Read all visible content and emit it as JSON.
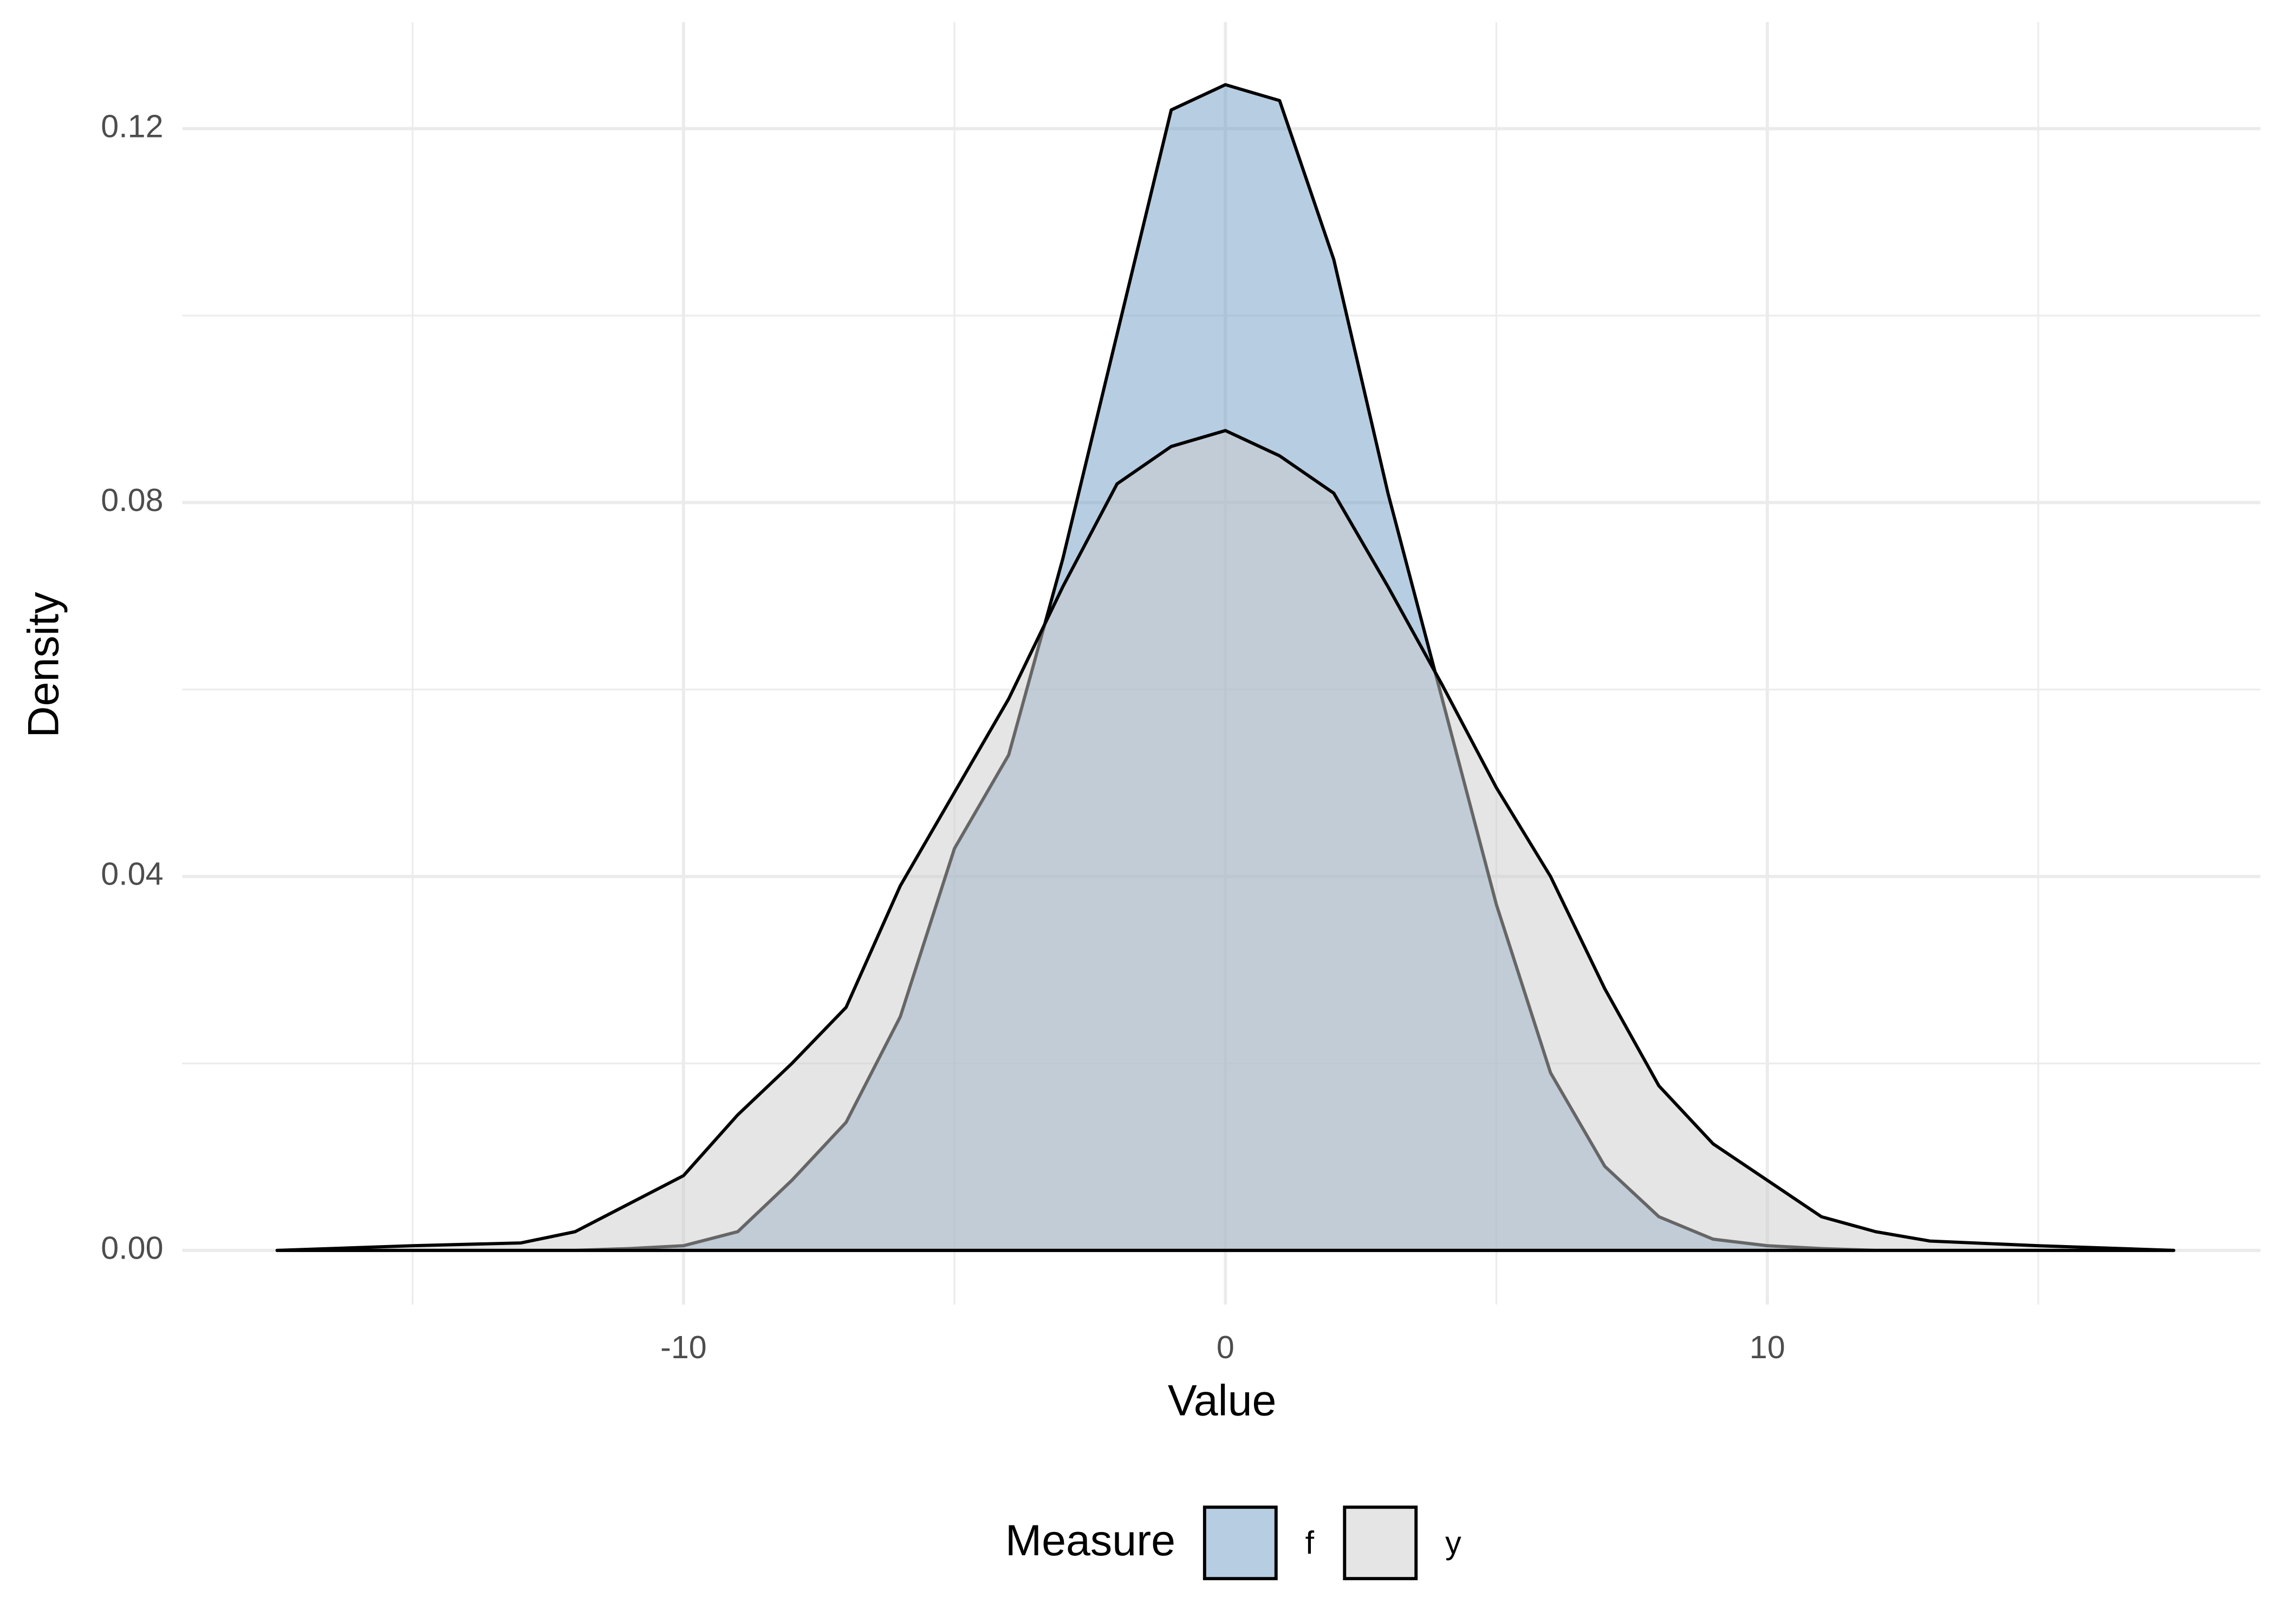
{
  "chart_data": {
    "type": "density",
    "x_label": "Value",
    "y_label": "Density",
    "legend_title": "Measure",
    "legend_position": "bottom",
    "grid": true,
    "fill_opacity": 0.5,
    "x": [
      -17.5,
      -15,
      -13,
      -12,
      -11,
      -10,
      -9,
      -8,
      -7,
      -6,
      -5,
      -4,
      -3,
      -2,
      -1,
      0,
      1,
      2,
      3,
      4,
      5,
      6,
      7,
      8,
      9,
      10,
      11,
      12,
      13,
      15,
      17.5
    ],
    "series": [
      {
        "name": "f",
        "color": "#6f9bc4",
        "values": [
          0,
          0,
          0,
          0,
          0.0002,
          0.0005,
          0.002,
          0.0075,
          0.0137,
          0.025,
          0.043,
          0.053,
          0.074,
          0.098,
          0.122,
          0.1247,
          0.123,
          0.106,
          0.081,
          0.059,
          0.037,
          0.019,
          0.009,
          0.0036,
          0.0012,
          0.0005,
          0.0002,
          0,
          0,
          0,
          0
        ]
      },
      {
        "name": "y",
        "color": "#cccccc",
        "values": [
          0,
          0.0005,
          0.0008,
          0.002,
          0.005,
          0.008,
          0.0145,
          0.02,
          0.026,
          0.039,
          0.049,
          0.059,
          0.071,
          0.082,
          0.086,
          0.0877,
          0.085,
          0.081,
          0.071,
          0.0605,
          0.0495,
          0.04,
          0.028,
          0.0176,
          0.0114,
          0.0075,
          0.0036,
          0.002,
          0.001,
          0.0005,
          0
        ]
      }
    ],
    "xlim": [
      -19.25,
      19.1
    ],
    "ylim": [
      -0.0058,
      0.1314
    ],
    "xticks": [
      -10,
      0,
      10
    ],
    "x_minor_ticks": [
      -15,
      -5,
      5,
      15
    ],
    "yticks": [
      {
        "value": 0,
        "label": "0.00"
      },
      0.04,
      0.08,
      0.12
    ],
    "y_minor_ticks": [
      0.02,
      0.06,
      0.1
    ]
  }
}
